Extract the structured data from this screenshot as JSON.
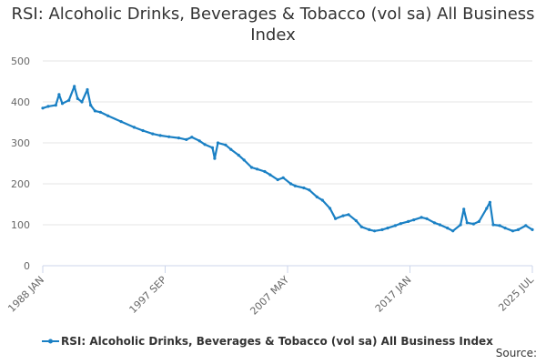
{
  "chart_data": {
    "type": "line",
    "title": "RSI: Alcoholic Drinks, Beverages & Tobacco (vol sa) All Business Index",
    "xlabel": "",
    "ylabel": "",
    "x_tick_labels": [
      "1988 JAN",
      "1997 SEP",
      "2007 MAY",
      "2017 JAN",
      "2025 JUL"
    ],
    "y_ticks": [
      0,
      100,
      200,
      300,
      400,
      500
    ],
    "ylim": [
      0,
      500
    ],
    "xlim": [
      "1988-01",
      "2025-07"
    ],
    "grid": true,
    "legend_position": "bottom",
    "series": [
      {
        "name": "RSI: Alcoholic Drinks, Beverages & Tobacco (vol sa) All Business Index",
        "color": "#1a80c4",
        "points": [
          [
            "1988-01",
            385
          ],
          [
            "1988-06",
            389
          ],
          [
            "1989-01",
            392
          ],
          [
            "1989-04",
            418
          ],
          [
            "1989-07",
            396
          ],
          [
            "1990-01",
            404
          ],
          [
            "1990-06",
            438
          ],
          [
            "1990-09",
            408
          ],
          [
            "1991-01",
            400
          ],
          [
            "1991-06",
            430
          ],
          [
            "1991-09",
            392
          ],
          [
            "1992-01",
            378
          ],
          [
            "1992-06",
            375
          ],
          [
            "1993-01",
            366
          ],
          [
            "1994-01",
            352
          ],
          [
            "1995-01",
            338
          ],
          [
            "1995-09",
            330
          ],
          [
            "1996-06",
            322
          ],
          [
            "1997-01",
            318
          ],
          [
            "1997-09",
            315
          ],
          [
            "1998-06",
            312
          ],
          [
            "1999-01",
            308
          ],
          [
            "1999-06",
            314
          ],
          [
            "2000-01",
            305
          ],
          [
            "2000-06",
            296
          ],
          [
            "2001-01",
            288
          ],
          [
            "2001-03",
            262
          ],
          [
            "2001-06",
            300
          ],
          [
            "2002-01",
            295
          ],
          [
            "2002-06",
            284
          ],
          [
            "2003-01",
            270
          ],
          [
            "2003-06",
            258
          ],
          [
            "2004-01",
            240
          ],
          [
            "2004-06",
            236
          ],
          [
            "2005-01",
            230
          ],
          [
            "2005-06",
            222
          ],
          [
            "2006-01",
            210
          ],
          [
            "2006-06",
            215
          ],
          [
            "2007-01",
            200
          ],
          [
            "2007-05",
            195
          ],
          [
            "2008-01",
            190
          ],
          [
            "2008-06",
            185
          ],
          [
            "2009-01",
            168
          ],
          [
            "2009-06",
            160
          ],
          [
            "2010-01",
            140
          ],
          [
            "2010-06",
            115
          ],
          [
            "2011-01",
            122
          ],
          [
            "2011-06",
            125
          ],
          [
            "2012-01",
            110
          ],
          [
            "2012-06",
            95
          ],
          [
            "2013-01",
            88
          ],
          [
            "2013-06",
            85
          ],
          [
            "2014-01",
            88
          ],
          [
            "2014-06",
            92
          ],
          [
            "2015-01",
            98
          ],
          [
            "2015-06",
            103
          ],
          [
            "2016-01",
            108
          ],
          [
            "2016-06",
            112
          ],
          [
            "2017-01",
            118
          ],
          [
            "2017-06",
            115
          ],
          [
            "2018-01",
            105
          ],
          [
            "2018-06",
            100
          ],
          [
            "2019-01",
            92
          ],
          [
            "2019-06",
            85
          ],
          [
            "2020-01",
            100
          ],
          [
            "2020-04",
            138
          ],
          [
            "2020-07",
            105
          ],
          [
            "2021-01",
            102
          ],
          [
            "2021-06",
            108
          ],
          [
            "2022-01",
            140
          ],
          [
            "2022-04",
            155
          ],
          [
            "2022-07",
            100
          ],
          [
            "2023-01",
            98
          ],
          [
            "2023-06",
            92
          ],
          [
            "2024-01",
            85
          ],
          [
            "2024-06",
            88
          ],
          [
            "2025-01",
            98
          ],
          [
            "2025-07",
            88
          ]
        ]
      }
    ]
  },
  "legend": {
    "label": "RSI: Alcoholic Drinks, Beverages & Tobacco (vol sa) All Business Index"
  },
  "source": {
    "label": "Source:"
  }
}
